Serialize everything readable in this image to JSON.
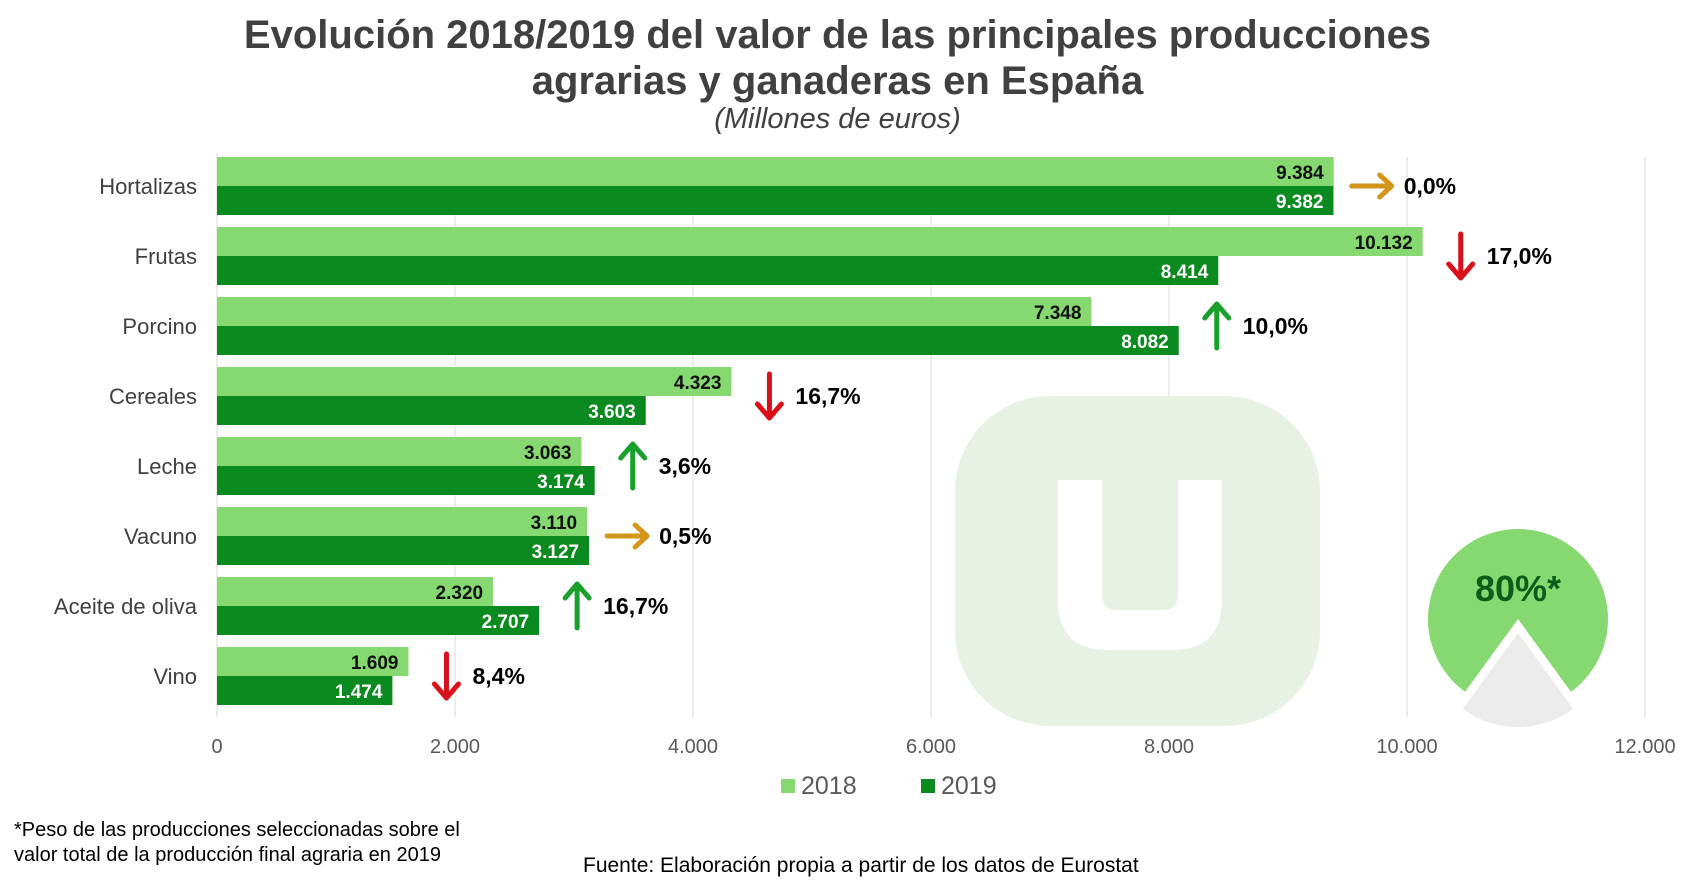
{
  "title": {
    "line1": "Evolución 2018/2019 del valor de las principales producciones",
    "line2": "agrarias y ganaderas en España",
    "subtitle": "(Millones  de euros)"
  },
  "colors": {
    "y2018": "#86d870",
    "y2019": "#0a8a1f",
    "up": "#17a02a",
    "down": "#d9101a",
    "flat": "#d4961a",
    "watermark": "#e8f2e4",
    "pie_share": "#86d870",
    "pie_rest": "#ebebeb",
    "grid": "#d9d9d9"
  },
  "chart_data": {
    "type": "bar",
    "orientation": "horizontal",
    "categories": [
      "Hortalizas",
      "Frutas",
      "Porcino",
      "Cereales",
      "Leche",
      "Vacuno",
      "Aceite de oliva",
      "Vino"
    ],
    "series": [
      {
        "name": "2018",
        "values": [
          9384,
          10132,
          7348,
          4323,
          3063,
          3110,
          2320,
          1609
        ],
        "labels": [
          "9.384",
          "10.132",
          "7.348",
          "4.323",
          "3.063",
          "3.110",
          "2.320",
          "1.609"
        ]
      },
      {
        "name": "2019",
        "values": [
          9382,
          8414,
          8082,
          3603,
          3174,
          3127,
          2707,
          1474
        ],
        "labels": [
          "9.382",
          "8.414",
          "8.082",
          "3.603",
          "3.174",
          "3.127",
          "2.707",
          "1.474"
        ]
      }
    ],
    "changes": [
      {
        "direction": "flat",
        "label": "0,0%"
      },
      {
        "direction": "down",
        "label": "17,0%"
      },
      {
        "direction": "up",
        "label": "10,0%"
      },
      {
        "direction": "down",
        "label": "16,7%"
      },
      {
        "direction": "up",
        "label": "3,6%"
      },
      {
        "direction": "flat",
        "label": "0,5%"
      },
      {
        "direction": "up",
        "label": "16,7%"
      },
      {
        "direction": "down",
        "label": "8,4%"
      }
    ],
    "xlim": [
      0,
      12000
    ],
    "xticks": [
      0,
      2000,
      4000,
      6000,
      8000,
      10000,
      12000
    ],
    "xtick_labels": [
      "0",
      "2.000",
      "4.000",
      "6.000",
      "8.000",
      "10.000",
      "12.000"
    ],
    "grid": true,
    "legend": {
      "placement": "bottom-center",
      "entries": [
        "2018",
        "2019"
      ]
    },
    "share_pie": {
      "share": 0.8,
      "label": "80%*"
    }
  },
  "watermark": {
    "letter": "u",
    "icon": "u-logo-watermark"
  },
  "footnote": {
    "line1": "*Peso de las producciones seleccionadas sobre el",
    "line2": "valor total de la producción final agraria en 2019"
  },
  "source": "Fuente: Elaboración propia a partir de los datos de Eurostat"
}
